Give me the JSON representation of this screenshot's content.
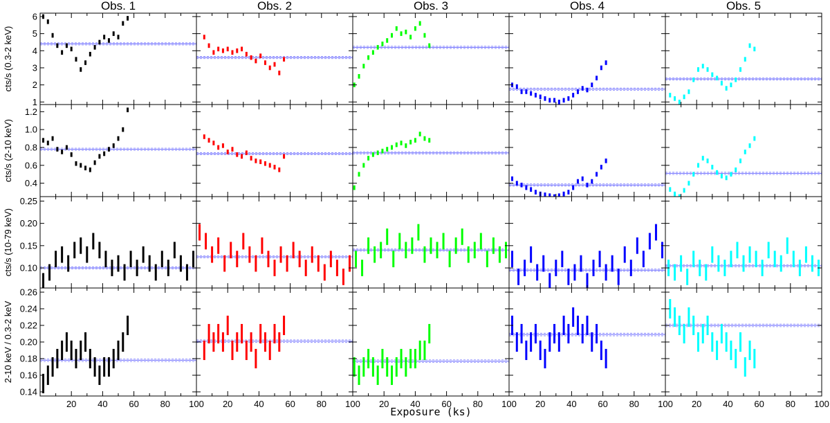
{
  "chart_data": {
    "type": "scatter",
    "layout": "4 rows x 5 columns light-curve grid with error bars",
    "column_titles": [
      "Obs. 1",
      "Obs. 2",
      "Obs. 3",
      "Obs. 4",
      "Obs. 5"
    ],
    "xlabel": "Exposure (ks)",
    "xlim": [
      0,
      100
    ],
    "x_ticks": [
      20,
      40,
      60,
      80,
      100
    ],
    "colors": [
      "#000000",
      "#ff0000",
      "#00ff00",
      "#0000ff",
      "#00ffff"
    ],
    "mean_line_color": "#7f7fff",
    "rows": [
      {
        "ylabel": "cts/s (0.3-2 keV)",
        "ylim": [
          0.85,
          6.2
        ],
        "y_ticks": [
          1,
          2,
          3,
          4,
          5,
          6
        ],
        "y_tick_labels": [
          "1",
          "2",
          "3",
          "4",
          "5",
          "6"
        ],
        "means": [
          4.4,
          3.6,
          4.2,
          1.75,
          2.35
        ],
        "series": [
          {
            "x": [
              2,
              5,
              8,
              11,
              14,
              17,
              20,
              23,
              26,
              29,
              32,
              35,
              38,
              41,
              44,
              47,
              50,
              53,
              56
            ],
            "y": [
              6.0,
              5.7,
              4.9,
              4.3,
              3.9,
              4.3,
              4.1,
              3.5,
              2.9,
              3.3,
              3.8,
              4.2,
              4.5,
              4.8,
              4.6,
              5.0,
              4.8,
              5.6,
              5.9
            ]
          },
          {
            "x": [
              5,
              8,
              11,
              14,
              17,
              20,
              23,
              26,
              29,
              32,
              35,
              38,
              41,
              44,
              47,
              50,
              53,
              56
            ],
            "y": [
              4.8,
              4.3,
              3.9,
              4.1,
              4.0,
              4.1,
              3.9,
              4.0,
              4.1,
              3.8,
              3.6,
              3.4,
              3.7,
              3.3,
              3.0,
              3.2,
              2.7,
              3.5
            ]
          },
          {
            "x": [
              1,
              4,
              7,
              10,
              13,
              16,
              19,
              22,
              25,
              28,
              31,
              34,
              37,
              40,
              43,
              46,
              49
            ],
            "y": [
              2.0,
              2.5,
              3.1,
              3.6,
              3.9,
              4.2,
              4.4,
              4.6,
              4.9,
              5.3,
              5.0,
              5.1,
              4.8,
              5.3,
              5.6,
              4.9,
              4.3
            ]
          },
          {
            "x": [
              2,
              5,
              8,
              11,
              14,
              17,
              20,
              23,
              26,
              29,
              32,
              35,
              38,
              41,
              44,
              47,
              50,
              53,
              56,
              59,
              62
            ],
            "y": [
              2.0,
              1.9,
              1.6,
              1.6,
              1.5,
              1.4,
              1.3,
              1.2,
              1.1,
              1.1,
              1.0,
              1.1,
              1.2,
              1.4,
              1.6,
              1.8,
              1.7,
              2.0,
              2.4,
              3.0,
              3.3
            ]
          },
          {
            "x": [
              3,
              6,
              9,
              12,
              15,
              18,
              21,
              24,
              27,
              30,
              33,
              36,
              39,
              42,
              45,
              48,
              51,
              54,
              57
            ],
            "y": [
              1.4,
              1.2,
              1.0,
              1.3,
              1.6,
              2.3,
              2.9,
              3.1,
              2.9,
              2.6,
              2.4,
              2.1,
              1.8,
              2.0,
              2.3,
              2.9,
              3.5,
              4.3,
              4.1
            ]
          }
        ]
      },
      {
        "ylabel": "cts/s (2-10 keV)",
        "ylim": [
          0.25,
          1.28
        ],
        "y_ticks": [
          0.4,
          0.6,
          0.8,
          1.0,
          1.2
        ],
        "y_tick_labels": [
          "0.4",
          "0.6",
          "0.8",
          "1.0",
          "1.2"
        ],
        "means": [
          0.78,
          0.73,
          0.74,
          0.38,
          0.51
        ],
        "series": [
          {
            "x": [
              2,
              5,
              8,
              11,
              14,
              17,
              20,
              23,
              26,
              29,
              32,
              35,
              38,
              41,
              44,
              47,
              50,
              53,
              56
            ],
            "y": [
              0.88,
              0.85,
              0.9,
              0.78,
              0.75,
              0.8,
              0.72,
              0.62,
              0.6,
              0.57,
              0.55,
              0.63,
              0.7,
              0.73,
              0.78,
              0.82,
              0.9,
              1.0,
              1.22
            ]
          },
          {
            "x": [
              5,
              8,
              11,
              14,
              17,
              20,
              23,
              26,
              29,
              32,
              35,
              38,
              41,
              44,
              47,
              50,
              53,
              56
            ],
            "y": [
              0.92,
              0.88,
              0.85,
              0.8,
              0.82,
              0.75,
              0.78,
              0.72,
              0.7,
              0.74,
              0.68,
              0.65,
              0.64,
              0.62,
              0.6,
              0.58,
              0.55,
              0.7
            ]
          },
          {
            "x": [
              1,
              4,
              7,
              10,
              13,
              16,
              19,
              22,
              25,
              28,
              31,
              34,
              37,
              40,
              43,
              46,
              49
            ],
            "y": [
              0.35,
              0.5,
              0.6,
              0.68,
              0.72,
              0.74,
              0.76,
              0.78,
              0.8,
              0.83,
              0.85,
              0.82,
              0.86,
              0.88,
              0.95,
              0.9,
              0.88
            ]
          },
          {
            "x": [
              2,
              5,
              8,
              11,
              14,
              17,
              20,
              23,
              26,
              29,
              32,
              35,
              38,
              41,
              44,
              47,
              50,
              53,
              56,
              59,
              62
            ],
            "y": [
              0.45,
              0.4,
              0.38,
              0.35,
              0.33,
              0.3,
              0.28,
              0.27,
              0.26,
              0.25,
              0.26,
              0.28,
              0.3,
              0.35,
              0.42,
              0.45,
              0.38,
              0.42,
              0.5,
              0.58,
              0.65
            ]
          },
          {
            "x": [
              3,
              6,
              9,
              12,
              15,
              18,
              21,
              24,
              27,
              30,
              33,
              36,
              39,
              42,
              45,
              48,
              51,
              54,
              57
            ],
            "y": [
              0.33,
              0.28,
              0.25,
              0.32,
              0.4,
              0.5,
              0.6,
              0.68,
              0.65,
              0.58,
              0.52,
              0.48,
              0.46,
              0.5,
              0.55,
              0.65,
              0.75,
              0.82,
              0.9
            ]
          }
        ]
      },
      {
        "ylabel": "cts/s (10-79 keV)",
        "ylim": [
          0.055,
          0.26
        ],
        "y_ticks": [
          0.1,
          0.15,
          0.2,
          0.25
        ],
        "y_tick_labels": [
          "0.10",
          "0.15",
          "0.20",
          "0.25"
        ],
        "means": [
          0.1,
          0.125,
          0.14,
          0.095,
          0.105
        ],
        "series": [
          {
            "x": [
              2,
              6,
              10,
              14,
              18,
              22,
              26,
              30,
              34,
              38,
              42,
              46,
              50,
              54,
              58,
              62,
              66,
              70,
              74,
              78,
              82,
              86,
              90,
              94,
              98
            ],
            "y": [
              0.07,
              0.09,
              0.12,
              0.13,
              0.11,
              0.14,
              0.15,
              0.13,
              0.16,
              0.14,
              0.12,
              0.1,
              0.11,
              0.09,
              0.12,
              0.1,
              0.13,
              0.11,
              0.09,
              0.12,
              0.1,
              0.14,
              0.11,
              0.09,
              0.12
            ]
          },
          {
            "x": [
              2,
              6,
              10,
              14,
              18,
              22,
              26,
              30,
              34,
              38,
              42,
              46,
              50,
              54,
              58,
              62,
              66,
              70,
              74,
              78,
              82,
              86,
              90,
              94,
              98
            ],
            "y": [
              0.18,
              0.16,
              0.13,
              0.15,
              0.11,
              0.14,
              0.12,
              0.16,
              0.13,
              0.11,
              0.15,
              0.12,
              0.1,
              0.13,
              0.11,
              0.14,
              0.12,
              0.1,
              0.13,
              0.11,
              0.09,
              0.12,
              0.1,
              0.08,
              0.11
            ]
          },
          {
            "x": [
              2,
              6,
              10,
              14,
              18,
              22,
              26,
              30,
              34,
              38,
              42,
              46,
              50,
              54,
              58,
              62,
              66,
              70,
              74,
              78,
              82,
              86,
              90,
              94,
              98
            ],
            "y": [
              0.12,
              0.1,
              0.15,
              0.13,
              0.14,
              0.17,
              0.12,
              0.16,
              0.14,
              0.15,
              0.18,
              0.13,
              0.15,
              0.14,
              0.16,
              0.12,
              0.15,
              0.17,
              0.13,
              0.14,
              0.16,
              0.12,
              0.15,
              0.13,
              0.14
            ]
          },
          {
            "x": [
              2,
              6,
              10,
              14,
              18,
              22,
              26,
              30,
              34,
              38,
              42,
              46,
              50,
              54,
              58,
              62,
              66,
              70,
              74,
              78,
              82,
              86,
              90,
              94,
              98
            ],
            "y": [
              0.12,
              0.08,
              0.1,
              0.13,
              0.09,
              0.11,
              0.07,
              0.1,
              0.12,
              0.08,
              0.09,
              0.11,
              0.07,
              0.1,
              0.12,
              0.09,
              0.11,
              0.08,
              0.13,
              0.1,
              0.15,
              0.12,
              0.16,
              0.18,
              0.14
            ]
          },
          {
            "x": [
              2,
              6,
              10,
              14,
              18,
              22,
              26,
              30,
              34,
              38,
              42,
              46,
              50,
              54,
              58,
              62,
              66,
              70,
              74,
              78,
              82,
              86,
              90,
              94,
              98
            ],
            "y": [
              0.1,
              0.09,
              0.11,
              0.08,
              0.12,
              0.1,
              0.09,
              0.13,
              0.11,
              0.1,
              0.12,
              0.14,
              0.11,
              0.13,
              0.12,
              0.1,
              0.14,
              0.12,
              0.11,
              0.15,
              0.12,
              0.1,
              0.13,
              0.11,
              0.1
            ]
          }
        ]
      },
      {
        "ylabel": "2-10 keV / 0.3-2 keV",
        "ylim": [
          0.135,
          0.265
        ],
        "y_ticks": [
          0.14,
          0.16,
          0.18,
          0.2,
          0.22,
          0.24,
          0.26
        ],
        "y_tick_labels": [
          "0.14",
          "0.16",
          "0.18",
          "0.20",
          "0.22",
          "0.24",
          "0.26"
        ],
        "means": [
          0.178,
          0.201,
          0.177,
          0.209,
          0.22
        ],
        "series": [
          {
            "x": [
              2,
              5,
              8,
              11,
              14,
              17,
              20,
              23,
              26,
              29,
              32,
              35,
              38,
              41,
              44,
              47,
              50,
              53,
              56
            ],
            "y": [
              0.15,
              0.16,
              0.17,
              0.18,
              0.19,
              0.2,
              0.19,
              0.18,
              0.19,
              0.2,
              0.18,
              0.17,
              0.16,
              0.17,
              0.17,
              0.18,
              0.19,
              0.2,
              0.22
            ]
          },
          {
            "x": [
              5,
              8,
              11,
              14,
              17,
              20,
              23,
              26,
              29,
              32,
              35,
              38,
              41,
              44,
              47,
              50,
              53,
              56
            ],
            "y": [
              0.19,
              0.21,
              0.2,
              0.21,
              0.2,
              0.22,
              0.19,
              0.2,
              0.21,
              0.19,
              0.2,
              0.18,
              0.21,
              0.2,
              0.19,
              0.21,
              0.2,
              0.22
            ]
          },
          {
            "x": [
              1,
              4,
              7,
              10,
              13,
              16,
              19,
              22,
              25,
              28,
              31,
              34,
              37,
              40,
              43,
              46,
              49
            ],
            "y": [
              0.17,
              0.16,
              0.17,
              0.18,
              0.17,
              0.16,
              0.18,
              0.17,
              0.16,
              0.17,
              0.18,
              0.17,
              0.18,
              0.18,
              0.19,
              0.19,
              0.21
            ]
          },
          {
            "x": [
              2,
              5,
              8,
              11,
              14,
              17,
              20,
              23,
              26,
              29,
              32,
              35,
              38,
              41,
              44,
              47,
              50,
              53,
              56,
              59,
              62
            ],
            "y": [
              0.22,
              0.2,
              0.21,
              0.19,
              0.2,
              0.21,
              0.19,
              0.18,
              0.2,
              0.21,
              0.2,
              0.22,
              0.21,
              0.23,
              0.22,
              0.21,
              0.22,
              0.2,
              0.21,
              0.19,
              0.18
            ]
          },
          {
            "x": [
              3,
              6,
              9,
              12,
              15,
              18,
              21,
              24,
              27,
              30,
              33,
              36,
              39,
              42,
              45,
              48,
              51,
              54,
              57
            ],
            "y": [
              0.24,
              0.23,
              0.22,
              0.21,
              0.23,
              0.22,
              0.2,
              0.21,
              0.22,
              0.2,
              0.19,
              0.21,
              0.2,
              0.19,
              0.18,
              0.2,
              0.17,
              0.19,
              0.18
            ]
          }
        ]
      }
    ]
  }
}
